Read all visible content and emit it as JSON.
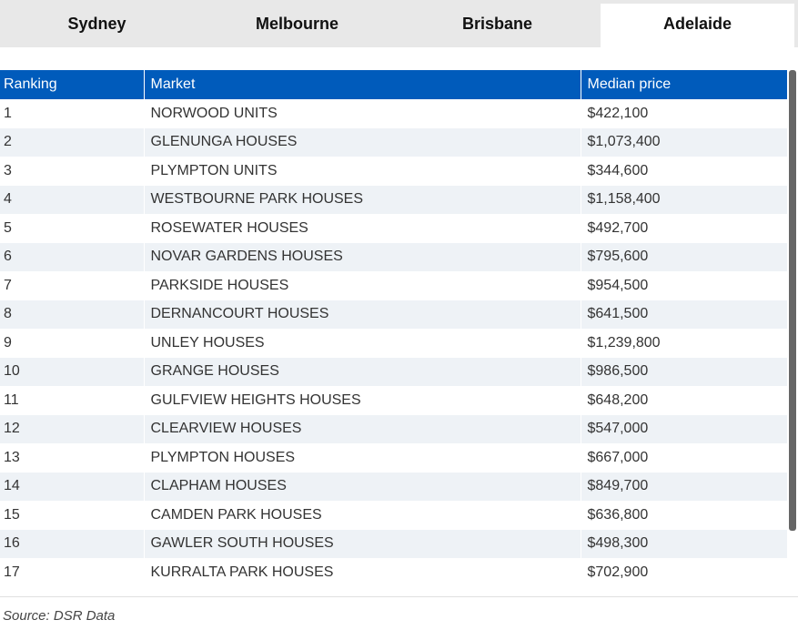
{
  "tabs": [
    "Sydney",
    "Melbourne",
    "Brisbane",
    "Adelaide"
  ],
  "active_tab": 3,
  "table": {
    "headers": [
      "Ranking",
      "Market",
      "Median price"
    ],
    "rows": [
      [
        "1",
        "NORWOOD UNITS",
        "$422,100"
      ],
      [
        "2",
        "GLENUNGA HOUSES",
        "$1,073,400"
      ],
      [
        "3",
        "PLYMPTON UNITS",
        "$344,600"
      ],
      [
        "4",
        "WESTBOURNE PARK HOUSES",
        "$1,158,400"
      ],
      [
        "5",
        "ROSEWATER HOUSES",
        "$492,700"
      ],
      [
        "6",
        "NOVAR GARDENS HOUSES",
        "$795,600"
      ],
      [
        "7",
        "PARKSIDE HOUSES",
        "$954,500"
      ],
      [
        "8",
        "DERNANCOURT HOUSES",
        "$641,500"
      ],
      [
        "9",
        "UNLEY HOUSES",
        "$1,239,800"
      ],
      [
        "10",
        "GRANGE HOUSES",
        "$986,500"
      ],
      [
        "11",
        "GULFVIEW HEIGHTS HOUSES",
        "$648,200"
      ],
      [
        "12",
        "CLEARVIEW HOUSES",
        "$547,000"
      ],
      [
        "13",
        "PLYMPTON HOUSES",
        "$667,000"
      ],
      [
        "14",
        "CLAPHAM HOUSES",
        "$849,700"
      ],
      [
        "15",
        "CAMDEN PARK HOUSES",
        "$636,800"
      ],
      [
        "16",
        "GAWLER SOUTH HOUSES",
        "$498,300"
      ],
      [
        "17",
        "KURRALTA PARK HOUSES",
        "$702,900"
      ]
    ]
  },
  "source": "Source: DSR Data"
}
